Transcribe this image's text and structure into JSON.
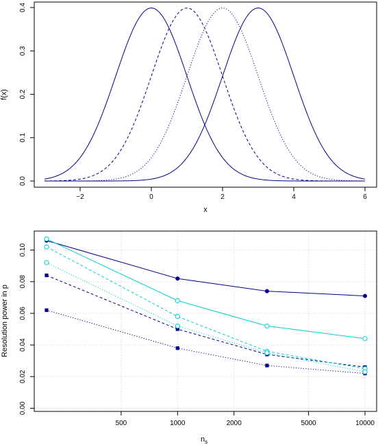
{
  "chart_data": [
    {
      "type": "line",
      "title": "",
      "xlabel": "x",
      "ylabel": "f(x)",
      "xlim": [
        -3,
        6
      ],
      "ylim": [
        0,
        0.4
      ],
      "x_ticks": [
        -2,
        0,
        2,
        4,
        6
      ],
      "y_ticks": [
        0.0,
        0.1,
        0.2,
        0.3,
        0.4
      ],
      "x_tick_labels": [
        "−2",
        "0",
        "2",
        "4",
        "6"
      ],
      "y_tick_labels": [
        "0.0",
        "0.1",
        "0.2",
        "0.3",
        "0.4"
      ],
      "grid": false,
      "series": [
        {
          "mean": 0,
          "sd": 1,
          "color": "#00008B",
          "linestyle": "solid"
        },
        {
          "mean": 1,
          "sd": 1,
          "color": "#00008B",
          "linestyle": "dashed"
        },
        {
          "mean": 2,
          "sd": 1,
          "color": "#00008B",
          "linestyle": "dotted"
        },
        {
          "mean": 3,
          "sd": 1,
          "color": "#00008B",
          "linestyle": "solid"
        }
      ]
    },
    {
      "type": "line",
      "title": "",
      "xlabel": "n",
      "xlabel_subscript": "s",
      "ylabel": "Resolution power in p",
      "xscale": "log",
      "xlim": [
        200,
        10000
      ],
      "ylim": [
        -0.002,
        0.112
      ],
      "x": [
        200,
        1000,
        3000,
        10000
      ],
      "x_ticks": [
        500,
        1000,
        2000,
        5000,
        10000
      ],
      "y_ticks": [
        0.0,
        0.02,
        0.04,
        0.06,
        0.08,
        0.1
      ],
      "x_tick_labels": [
        "500",
        "1000",
        "2000",
        "5000",
        "10000"
      ],
      "y_tick_labels": [
        "0.00",
        "0.02",
        "0.04",
        "0.06",
        "0.08",
        "0.10"
      ],
      "grid": true,
      "series": [
        {
          "values": [
            0.106,
            0.082,
            0.074,
            0.071
          ],
          "color": "#00008B",
          "linestyle": "solid",
          "marker": "filled-circle"
        },
        {
          "values": [
            0.084,
            0.05,
            0.034,
            0.026
          ],
          "color": "#00008B",
          "linestyle": "dashed",
          "marker": "filled-square"
        },
        {
          "values": [
            0.062,
            0.038,
            0.027,
            0.022
          ],
          "color": "#00008B",
          "linestyle": "dotted",
          "marker": "filled-square"
        },
        {
          "values": [
            0.107,
            0.068,
            0.052,
            0.044
          ],
          "color": "#00CED1",
          "linestyle": "solid",
          "marker": "open-circle"
        },
        {
          "values": [
            0.102,
            0.058,
            0.036,
            0.025
          ],
          "color": "#00CED1",
          "linestyle": "dashed",
          "marker": "open-circle"
        },
        {
          "values": [
            0.092,
            0.052,
            0.035,
            0.023
          ],
          "color": "#00CED1",
          "linestyle": "dotted",
          "marker": "open-circle"
        }
      ]
    }
  ]
}
